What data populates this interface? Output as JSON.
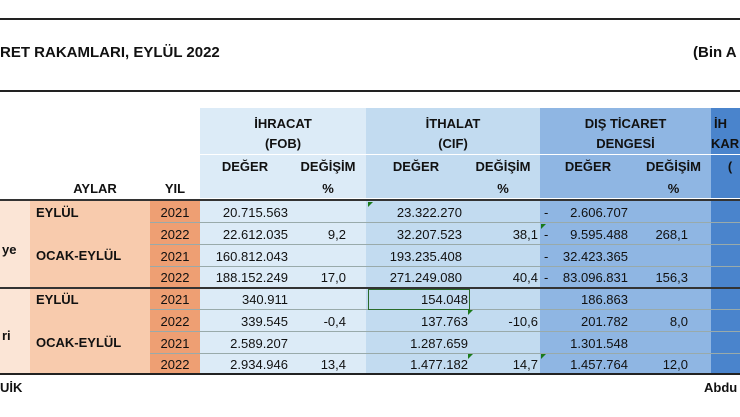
{
  "title": "RET RAKAMLARI, EYLÜL 2022",
  "unit": "(Bin A",
  "headers": {
    "ihracat": "İHRACAT",
    "ihracat_sub": "(FOB)",
    "ithalat": "İTHALAT",
    "ithalat_sub": "(CIF)",
    "dis_ticaret": "DIŞ TİCARET",
    "dis_ticaret_sub": "DENGESİ",
    "ihr_karsilama": "İH",
    "ihr_karsilama_sub": "KAR",
    "deger": "DEĞER",
    "degisim": "DEĞİŞİM",
    "pct": "%",
    "aylar": "AYLAR",
    "yil": "YIL",
    "last_col_sub": "("
  },
  "groups": [
    {
      "label": "ye",
      "periods": [
        {
          "period": "EYLÜL",
          "rows": [
            {
              "yil": "2021",
              "ihr": "20.715.563",
              "ihr_d": "",
              "ith": "23.322.270",
              "ith_d": "",
              "dtd": "2.606.707",
              "dtd_sign": "-",
              "dtd_d": ""
            },
            {
              "yil": "2022",
              "ihr": "22.612.035",
              "ihr_d": "9,2",
              "ith": "32.207.523",
              "ith_d": "38,1",
              "dtd": "9.595.488",
              "dtd_sign": "-",
              "dtd_d": "268,1"
            }
          ]
        },
        {
          "period": "OCAK-EYLÜL",
          "rows": [
            {
              "yil": "2021",
              "ihr": "160.812.043",
              "ihr_d": "",
              "ith": "193.235.408",
              "ith_d": "",
              "dtd": "32.423.365",
              "dtd_sign": "-",
              "dtd_d": ""
            },
            {
              "yil": "2022",
              "ihr": "188.152.249",
              "ihr_d": "17,0",
              "ith": "271.249.080",
              "ith_d": "40,4",
              "dtd": "83.096.831",
              "dtd_sign": "-",
              "dtd_d": "156,3"
            }
          ]
        }
      ]
    },
    {
      "label": "ri",
      "periods": [
        {
          "period": "EYLÜL",
          "rows": [
            {
              "yil": "2021",
              "ihr": "340.911",
              "ihr_d": "",
              "ith": "154.048",
              "ith_d": "",
              "dtd": "186.863",
              "dtd_sign": "",
              "dtd_d": ""
            },
            {
              "yil": "2022",
              "ihr": "339.545",
              "ihr_d": "-0,4",
              "ith": "137.763",
              "ith_d": "-10,6",
              "dtd": "201.782",
              "dtd_sign": "",
              "dtd_d": "8,0"
            }
          ]
        },
        {
          "period": "OCAK-EYLÜL",
          "rows": [
            {
              "yil": "2021",
              "ihr": "2.589.207",
              "ihr_d": "",
              "ith": "1.287.659",
              "ith_d": "",
              "dtd": "1.301.548",
              "dtd_sign": "",
              "dtd_d": ""
            },
            {
              "yil": "2022",
              "ihr": "2.934.946",
              "ihr_d": "13,4",
              "ith": "1.477.182",
              "ith_d": "14,7",
              "dtd": "1.457.764",
              "dtd_sign": "",
              "dtd_d": "12,0"
            }
          ]
        }
      ]
    }
  ],
  "footer": {
    "left": "UİK",
    "right": "Abdu"
  },
  "colors": {
    "ihr_bg": "#dcebf7",
    "ith_bg": "#c2dbf0",
    "dtd_bg": "#8fb6e3",
    "last_bg": "#4a84cc",
    "period_bg": "#f8cbad",
    "year_bg": "#ee9f73"
  }
}
